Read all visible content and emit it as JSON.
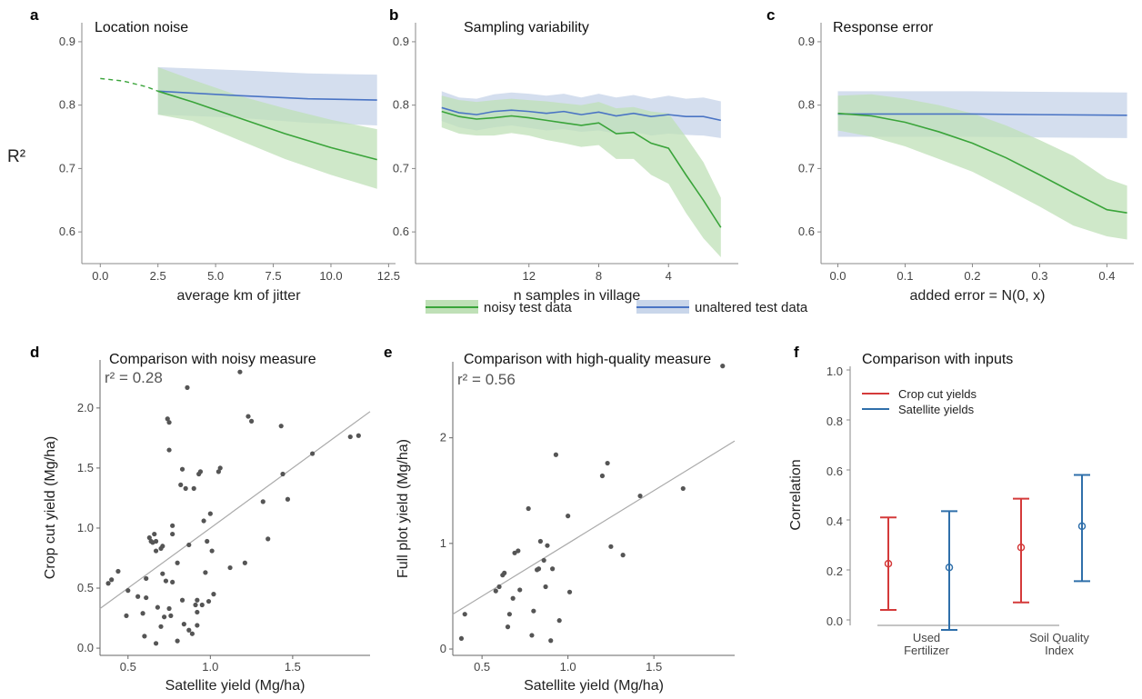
{
  "colors": {
    "noisy": "#3aa43a",
    "noisy_band": "#bfe0b7",
    "unaltered": "#4a74c4",
    "unaltered_band": "#c9d6ea",
    "crop": "#d43a3a",
    "satellite": "#2f6faa",
    "point": "#555555",
    "fit": "#aaaaaa"
  },
  "shared": {
    "ylabel_top": "R²",
    "legend_noisy": "noisy test data",
    "legend_unaltered": "unaltered test data"
  },
  "chart_data": [
    {
      "id": "a",
      "panel_label": "a",
      "type": "line",
      "title": "Location noise",
      "xlabel": "average km of jitter",
      "xlim": [
        -0.8,
        12.8
      ],
      "ylim": [
        0.55,
        0.93
      ],
      "xticks": [
        0,
        2.5,
        5,
        7.5,
        10,
        12.5
      ],
      "xtick_labels": [
        "0.0",
        "2.5",
        "5.0",
        "7.5",
        "10.0",
        "12.5"
      ],
      "yticks": [
        0.6,
        0.7,
        0.8,
        0.9
      ],
      "ytick_labels": [
        "0.6",
        "0.7",
        "0.8",
        "0.9"
      ],
      "dashed_extrapolation": {
        "x": [
          0,
          1,
          2,
          2.5
        ],
        "y": [
          0.842,
          0.838,
          0.829,
          0.822
        ]
      },
      "series": [
        {
          "name": "noisy test data",
          "x": [
            2.5,
            4,
            6,
            8,
            10,
            12
          ],
          "y": [
            0.822,
            0.805,
            0.78,
            0.755,
            0.733,
            0.714
          ],
          "lo": [
            0.785,
            0.775,
            0.745,
            0.715,
            0.69,
            0.668
          ],
          "hi": [
            0.86,
            0.84,
            0.815,
            0.795,
            0.777,
            0.762
          ]
        },
        {
          "name": "unaltered test data",
          "x": [
            2.5,
            6,
            9,
            12
          ],
          "y": [
            0.822,
            0.815,
            0.81,
            0.808
          ],
          "lo": [
            0.785,
            0.78,
            0.772,
            0.768
          ],
          "hi": [
            0.86,
            0.855,
            0.85,
            0.848
          ]
        }
      ]
    },
    {
      "id": "b",
      "panel_label": "b",
      "type": "line",
      "title": "Sampling variability",
      "xlabel": "n samples in village",
      "xlim": [
        18.5,
        0
      ],
      "ylim": [
        0.55,
        0.93
      ],
      "xticks": [
        12,
        8,
        4
      ],
      "xtick_labels": [
        "12",
        "8",
        "4"
      ],
      "yticks": [
        0.6,
        0.7,
        0.8,
        0.9
      ],
      "ytick_labels": [
        "0.6",
        "0.7",
        "0.8",
        "0.9"
      ],
      "series": [
        {
          "name": "noisy test data",
          "x": [
            17,
            16,
            15,
            14,
            13,
            12,
            11,
            10,
            9,
            8,
            7,
            6,
            5,
            4,
            3,
            2,
            1
          ],
          "y": [
            0.79,
            0.782,
            0.778,
            0.78,
            0.783,
            0.78,
            0.776,
            0.772,
            0.768,
            0.772,
            0.755,
            0.757,
            0.74,
            0.732,
            0.69,
            0.65,
            0.607
          ],
          "lo": [
            0.765,
            0.755,
            0.752,
            0.752,
            0.756,
            0.752,
            0.745,
            0.74,
            0.734,
            0.737,
            0.715,
            0.715,
            0.69,
            0.676,
            0.63,
            0.59,
            0.56
          ],
          "hi": [
            0.815,
            0.808,
            0.805,
            0.808,
            0.81,
            0.808,
            0.806,
            0.803,
            0.8,
            0.805,
            0.795,
            0.797,
            0.79,
            0.787,
            0.75,
            0.71,
            0.654
          ]
        },
        {
          "name": "unaltered test data",
          "x": [
            17,
            16,
            15,
            14,
            13,
            12,
            11,
            10,
            9,
            8,
            7,
            6,
            5,
            4,
            3,
            2,
            1
          ],
          "y": [
            0.796,
            0.788,
            0.785,
            0.79,
            0.792,
            0.79,
            0.787,
            0.79,
            0.785,
            0.789,
            0.783,
            0.787,
            0.782,
            0.785,
            0.782,
            0.782,
            0.776
          ],
          "lo": [
            0.775,
            0.765,
            0.76,
            0.765,
            0.768,
            0.764,
            0.76,
            0.762,
            0.758,
            0.76,
            0.755,
            0.758,
            0.752,
            0.755,
            0.753,
            0.752,
            0.748
          ],
          "hi": [
            0.822,
            0.812,
            0.81,
            0.817,
            0.82,
            0.818,
            0.815,
            0.818,
            0.812,
            0.818,
            0.812,
            0.816,
            0.81,
            0.815,
            0.81,
            0.812,
            0.806
          ]
        }
      ]
    },
    {
      "id": "c",
      "panel_label": "c",
      "type": "line",
      "title": "Response error",
      "xlabel": "added error = N(0, x)",
      "xlim": [
        -0.025,
        0.44
      ],
      "ylim": [
        0.55,
        0.93
      ],
      "xticks": [
        0,
        0.1,
        0.2,
        0.3,
        0.4
      ],
      "xtick_labels": [
        "0.0",
        "0.1",
        "0.2",
        "0.3",
        "0.4"
      ],
      "yticks": [
        0.6,
        0.7,
        0.8,
        0.9
      ],
      "ytick_labels": [
        "0.6",
        "0.7",
        "0.8",
        "0.9"
      ],
      "series": [
        {
          "name": "noisy test data",
          "x": [
            0,
            0.05,
            0.1,
            0.15,
            0.2,
            0.25,
            0.3,
            0.35,
            0.4,
            0.43
          ],
          "y": [
            0.787,
            0.783,
            0.773,
            0.758,
            0.74,
            0.717,
            0.69,
            0.662,
            0.635,
            0.63
          ],
          "lo": [
            0.76,
            0.75,
            0.735,
            0.715,
            0.695,
            0.668,
            0.64,
            0.61,
            0.593,
            0.588
          ],
          "hi": [
            0.815,
            0.817,
            0.81,
            0.8,
            0.787,
            0.768,
            0.745,
            0.72,
            0.684,
            0.673
          ]
        },
        {
          "name": "unaltered test data",
          "x": [
            0,
            0.1,
            0.2,
            0.3,
            0.43
          ],
          "y": [
            0.786,
            0.786,
            0.786,
            0.785,
            0.784
          ],
          "lo": [
            0.75,
            0.75,
            0.75,
            0.749,
            0.748
          ],
          "hi": [
            0.822,
            0.822,
            0.822,
            0.821,
            0.82
          ]
        }
      ]
    },
    {
      "id": "d",
      "panel_label": "d",
      "type": "scatter",
      "title": "Comparison with noisy measure",
      "annotation": "r² = 0.28",
      "xlabel": "Satellite yield (Mg/ha)",
      "ylabel": "Crop cut yield (Mg/ha)",
      "xlim": [
        0.33,
        1.97
      ],
      "ylim": [
        -0.06,
        2.4
      ],
      "xticks": [
        0.5,
        1.0,
        1.5
      ],
      "xtick_labels": [
        "0.5",
        "1.0",
        "1.5"
      ],
      "yticks": [
        0,
        0.5,
        1.0,
        1.5,
        2.0
      ],
      "ytick_labels": [
        "0.0",
        "0.5",
        "1.0",
        "1.5",
        "2.0"
      ],
      "fit_line": {
        "x": [
          0.33,
          1.97
        ],
        "y": [
          0.33,
          1.97
        ]
      },
      "points": [
        [
          0.38,
          0.54
        ],
        [
          0.4,
          0.57
        ],
        [
          0.44,
          0.64
        ],
        [
          0.5,
          0.48
        ],
        [
          0.49,
          0.27
        ],
        [
          0.56,
          0.43
        ],
        [
          0.59,
          0.29
        ],
        [
          0.6,
          0.1
        ],
        [
          0.61,
          0.42
        ],
        [
          0.61,
          0.58
        ],
        [
          0.63,
          0.92
        ],
        [
          0.64,
          0.89
        ],
        [
          0.65,
          0.88
        ],
        [
          0.66,
          0.95
        ],
        [
          0.67,
          0.04
        ],
        [
          0.67,
          0.81
        ],
        [
          0.67,
          0.89
        ],
        [
          0.68,
          0.34
        ],
        [
          0.7,
          0.83
        ],
        [
          0.7,
          0.18
        ],
        [
          0.71,
          0.85
        ],
        [
          0.71,
          0.62
        ],
        [
          0.72,
          0.26
        ],
        [
          0.73,
          0.56
        ],
        [
          0.74,
          1.91
        ],
        [
          0.75,
          1.88
        ],
        [
          0.75,
          1.65
        ],
        [
          0.75,
          0.33
        ],
        [
          0.76,
          0.27
        ],
        [
          0.77,
          1.02
        ],
        [
          0.77,
          0.95
        ],
        [
          0.77,
          0.55
        ],
        [
          0.8,
          0.71
        ],
        [
          0.8,
          0.06
        ],
        [
          0.82,
          1.36
        ],
        [
          0.83,
          1.49
        ],
        [
          0.83,
          0.4
        ],
        [
          0.84,
          0.2
        ],
        [
          0.85,
          1.33
        ],
        [
          0.86,
          2.17
        ],
        [
          0.87,
          0.86
        ],
        [
          0.87,
          0.15
        ],
        [
          0.89,
          0.12
        ],
        [
          0.9,
          1.33
        ],
        [
          0.91,
          0.36
        ],
        [
          0.92,
          0.4
        ],
        [
          0.92,
          0.3
        ],
        [
          0.92,
          0.19
        ],
        [
          0.93,
          1.45
        ],
        [
          0.94,
          1.47
        ],
        [
          0.95,
          0.36
        ],
        [
          0.96,
          1.06
        ],
        [
          0.97,
          0.63
        ],
        [
          0.98,
          0.89
        ],
        [
          0.99,
          0.39
        ],
        [
          1.0,
          1.12
        ],
        [
          1.01,
          0.81
        ],
        [
          1.02,
          0.45
        ],
        [
          1.05,
          1.47
        ],
        [
          1.06,
          1.5
        ],
        [
          1.12,
          0.67
        ],
        [
          1.18,
          2.3
        ],
        [
          1.21,
          0.71
        ],
        [
          1.23,
          1.93
        ],
        [
          1.25,
          1.89
        ],
        [
          1.32,
          1.22
        ],
        [
          1.35,
          0.91
        ],
        [
          1.43,
          1.85
        ],
        [
          1.44,
          1.45
        ],
        [
          1.47,
          1.24
        ],
        [
          1.62,
          1.62
        ],
        [
          1.85,
          1.76
        ],
        [
          1.9,
          1.77
        ]
      ]
    },
    {
      "id": "e",
      "panel_label": "e",
      "type": "scatter",
      "title": "Comparison with high-quality measure",
      "annotation": "r² = 0.56",
      "xlabel": "Satellite yield (Mg/ha)",
      "ylabel": "Full plot yield (Mg/ha)",
      "xlim": [
        0.33,
        1.97
      ],
      "ylim": [
        -0.06,
        2.72
      ],
      "xticks": [
        0.5,
        1.0,
        1.5
      ],
      "xtick_labels": [
        "0.5",
        "1.0",
        "1.5"
      ],
      "yticks": [
        0,
        1,
        2
      ],
      "ytick_labels": [
        "0",
        "1",
        "2"
      ],
      "fit_line": {
        "x": [
          0.33,
          1.97
        ],
        "y": [
          0.33,
          1.97
        ]
      },
      "points": [
        [
          0.38,
          0.1
        ],
        [
          0.4,
          0.33
        ],
        [
          0.58,
          0.55
        ],
        [
          0.6,
          0.59
        ],
        [
          0.62,
          0.7
        ],
        [
          0.63,
          0.72
        ],
        [
          0.65,
          0.21
        ],
        [
          0.66,
          0.33
        ],
        [
          0.68,
          0.48
        ],
        [
          0.69,
          0.91
        ],
        [
          0.71,
          0.93
        ],
        [
          0.72,
          0.56
        ],
        [
          0.77,
          1.33
        ],
        [
          0.79,
          0.13
        ],
        [
          0.8,
          0.36
        ],
        [
          0.82,
          0.75
        ],
        [
          0.83,
          0.76
        ],
        [
          0.84,
          1.02
        ],
        [
          0.86,
          0.84
        ],
        [
          0.87,
          0.59
        ],
        [
          0.88,
          0.98
        ],
        [
          0.9,
          0.08
        ],
        [
          0.91,
          0.76
        ],
        [
          0.93,
          1.84
        ],
        [
          0.95,
          0.27
        ],
        [
          1.0,
          1.26
        ],
        [
          1.01,
          0.54
        ],
        [
          1.2,
          1.64
        ],
        [
          1.23,
          1.76
        ],
        [
          1.25,
          0.97
        ],
        [
          1.32,
          0.89
        ],
        [
          1.42,
          1.45
        ],
        [
          1.67,
          1.52
        ],
        [
          1.9,
          2.68
        ]
      ]
    },
    {
      "id": "f",
      "panel_label": "f",
      "type": "scatter",
      "title": "Comparison with inputs",
      "ylabel": "Correlation",
      "ylim": [
        0.0,
        1.0
      ],
      "yticks": [
        0.0,
        0.2,
        0.4,
        0.6,
        0.8,
        1.0
      ],
      "ytick_labels": [
        "0.0",
        "0.2",
        "0.4",
        "0.6",
        "0.8",
        "1.0"
      ],
      "categories": [
        "Used Fertilizer",
        "Soil Quality Index"
      ],
      "category_lines": [
        [
          "Used",
          "Fertilizer"
        ],
        [
          "Soil Quality",
          "Index"
        ]
      ],
      "series": [
        {
          "name": "Crop cut yields",
          "values": [
            0.225,
            0.29
          ],
          "lower": [
            0.04,
            0.07
          ],
          "upper": [
            0.41,
            0.485
          ]
        },
        {
          "name": "Satellite yields",
          "values": [
            0.21,
            0.375
          ],
          "lower": [
            -0.04,
            0.155
          ],
          "upper": [
            0.435,
            0.58
          ]
        }
      ]
    }
  ]
}
